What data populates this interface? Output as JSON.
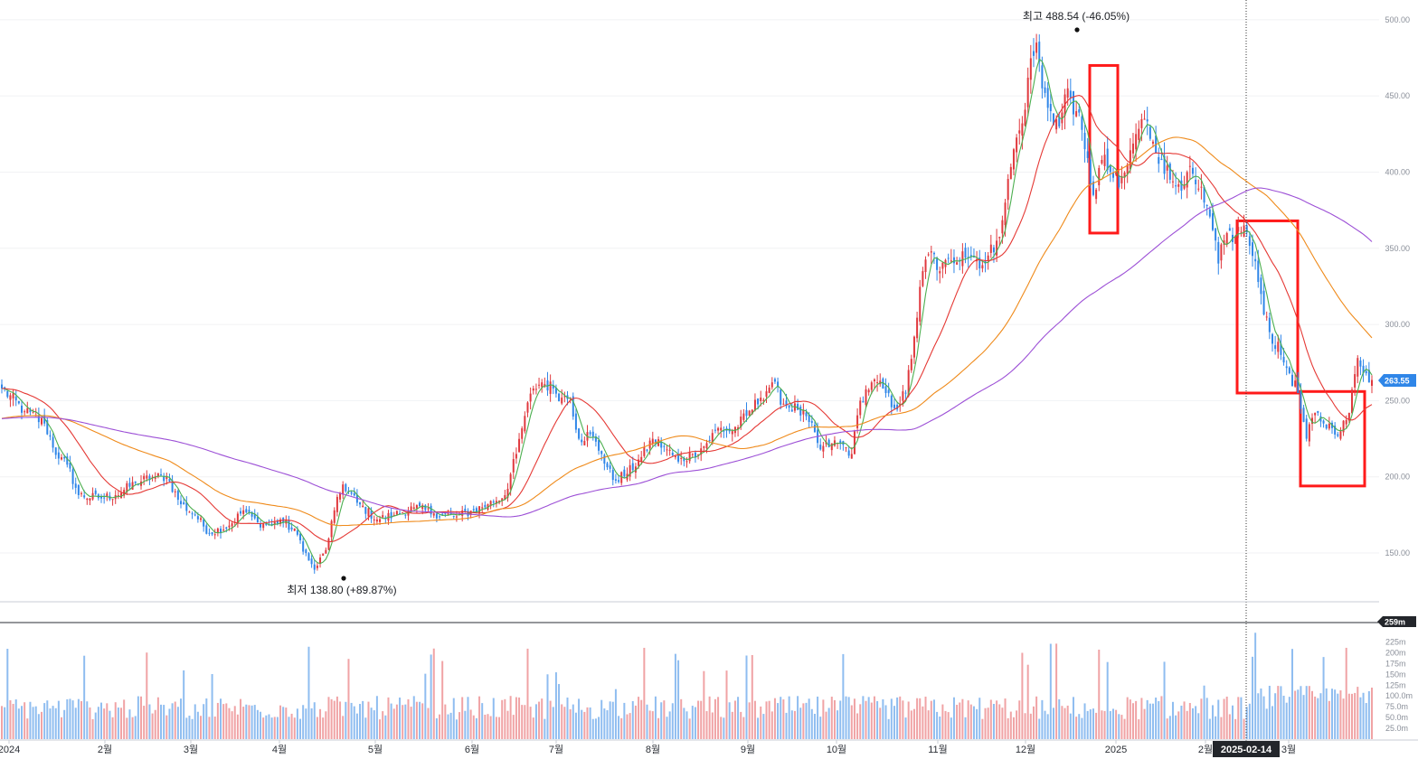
{
  "chart_data": {
    "type": "candlestick",
    "title": "",
    "price_axis": {
      "range": [
        118,
        510
      ],
      "ticks": [
        "150.00",
        "200.00",
        "250.00",
        "300.00",
        "350.00",
        "400.00",
        "450.00",
        "500.00"
      ]
    },
    "volume_axis": {
      "range": [
        0,
        270
      ],
      "ticks": [
        "25.0m",
        "50.0m",
        "75.0m",
        "100.0m",
        "125m",
        "150m",
        "175m",
        "200m",
        "225m"
      ]
    },
    "time_axis": {
      "labels": [
        "2024",
        "2월",
        "3월",
        "4월",
        "5월",
        "6월",
        "7월",
        "8월",
        "9월",
        "10월",
        "11월",
        "12월",
        "2025",
        "2월",
        "3월"
      ]
    },
    "price_waypoints": [
      [
        0,
        258
      ],
      [
        8,
        243
      ],
      [
        15,
        235
      ],
      [
        20,
        212
      ],
      [
        23,
        208
      ],
      [
        27,
        188
      ],
      [
        34,
        186
      ],
      [
        40,
        188
      ],
      [
        47,
        196
      ],
      [
        53,
        200
      ],
      [
        58,
        200
      ],
      [
        63,
        182
      ],
      [
        68,
        175
      ],
      [
        73,
        163
      ],
      [
        80,
        168
      ],
      [
        85,
        178
      ],
      [
        90,
        170
      ],
      [
        95,
        168
      ],
      [
        98,
        172
      ],
      [
        104,
        162
      ],
      [
        108,
        145
      ],
      [
        110,
        139
      ],
      [
        114,
        152
      ],
      [
        117,
        178
      ],
      [
        120,
        195
      ],
      [
        125,
        183
      ],
      [
        132,
        172
      ],
      [
        138,
        175
      ],
      [
        145,
        180
      ],
      [
        152,
        176
      ],
      [
        160,
        174
      ],
      [
        166,
        178
      ],
      [
        171,
        182
      ],
      [
        177,
        188
      ],
      [
        181,
        215
      ],
      [
        184,
        240
      ],
      [
        187,
        258
      ],
      [
        190,
        262
      ],
      [
        194,
        258
      ],
      [
        197,
        252
      ],
      [
        200,
        252
      ],
      [
        203,
        225
      ],
      [
        207,
        228
      ],
      [
        211,
        215
      ],
      [
        215,
        198
      ],
      [
        220,
        202
      ],
      [
        225,
        213
      ],
      [
        229,
        225
      ],
      [
        234,
        218
      ],
      [
        238,
        210
      ],
      [
        243,
        215
      ],
      [
        247,
        220
      ],
      [
        252,
        232
      ],
      [
        257,
        230
      ],
      [
        262,
        240
      ],
      [
        267,
        252
      ],
      [
        271,
        262
      ],
      [
        275,
        248
      ],
      [
        280,
        244
      ],
      [
        284,
        236
      ],
      [
        288,
        218
      ],
      [
        292,
        222
      ],
      [
        296,
        221
      ],
      [
        299,
        215
      ],
      [
        302,
        250
      ],
      [
        306,
        262
      ],
      [
        310,
        258
      ],
      [
        314,
        245
      ],
      [
        318,
        255
      ],
      [
        321,
        292
      ],
      [
        324,
        335
      ],
      [
        327,
        348
      ],
      [
        330,
        335
      ],
      [
        334,
        342
      ],
      [
        338,
        348
      ],
      [
        342,
        344
      ],
      [
        346,
        340
      ],
      [
        350,
        355
      ],
      [
        353,
        380
      ],
      [
        356,
        415
      ],
      [
        359,
        432
      ],
      [
        361,
        462
      ],
      [
        364,
        485
      ],
      [
        366,
        455
      ],
      [
        369,
        440
      ],
      [
        372,
        430
      ],
      [
        375,
        455
      ],
      [
        378,
        440
      ],
      [
        381,
        415
      ],
      [
        384,
        385
      ],
      [
        387,
        408
      ],
      [
        390,
        400
      ],
      [
        393,
        390
      ],
      [
        396,
        405
      ],
      [
        399,
        425
      ],
      [
        402,
        435
      ],
      [
        405,
        420
      ],
      [
        408,
        408
      ],
      [
        411,
        395
      ],
      [
        414,
        392
      ],
      [
        417,
        400
      ],
      [
        420,
        392
      ],
      [
        423,
        380
      ],
      [
        426,
        362
      ],
      [
        428,
        340
      ],
      [
        431,
        360
      ],
      [
        434,
        358
      ],
      [
        437,
        365
      ],
      [
        440,
        345
      ],
      [
        443,
        320
      ],
      [
        446,
        295
      ],
      [
        450,
        280
      ],
      [
        453,
        268
      ],
      [
        456,
        255
      ],
      [
        459,
        225
      ],
      [
        462,
        242
      ],
      [
        465,
        235
      ],
      [
        468,
        232
      ],
      [
        471,
        230
      ],
      [
        474,
        242
      ],
      [
        477,
        278
      ],
      [
        480,
        268
      ],
      [
        482,
        263.55
      ]
    ],
    "ma_lines": [
      {
        "window": 5,
        "color": "#4caf50"
      },
      {
        "window": 20,
        "color": "#e53935"
      },
      {
        "window": 60,
        "color": "#ef8a1a"
      },
      {
        "window": 120,
        "color": "#9c4fd6"
      }
    ],
    "annotations": {
      "high": {
        "label": "최고 488.54 (-46.05%)",
        "value": 488.54
      },
      "low": {
        "label": "최저 138.80 (+89.87%)",
        "value": 138.8
      },
      "last_price": "263.55",
      "last_volume": "259m",
      "crosshair_date": "2025-02-14"
    },
    "highlight_boxes": [
      {
        "from": "2024-12",
        "to": "2025-01",
        "price_range": [
          360,
          470
        ]
      },
      {
        "from": "2025-02",
        "to": "2025-03",
        "price_range": [
          255,
          368
        ]
      },
      {
        "from": "2025-03",
        "to": "2025-03",
        "price_range": [
          194,
          256
        ]
      }
    ]
  }
}
